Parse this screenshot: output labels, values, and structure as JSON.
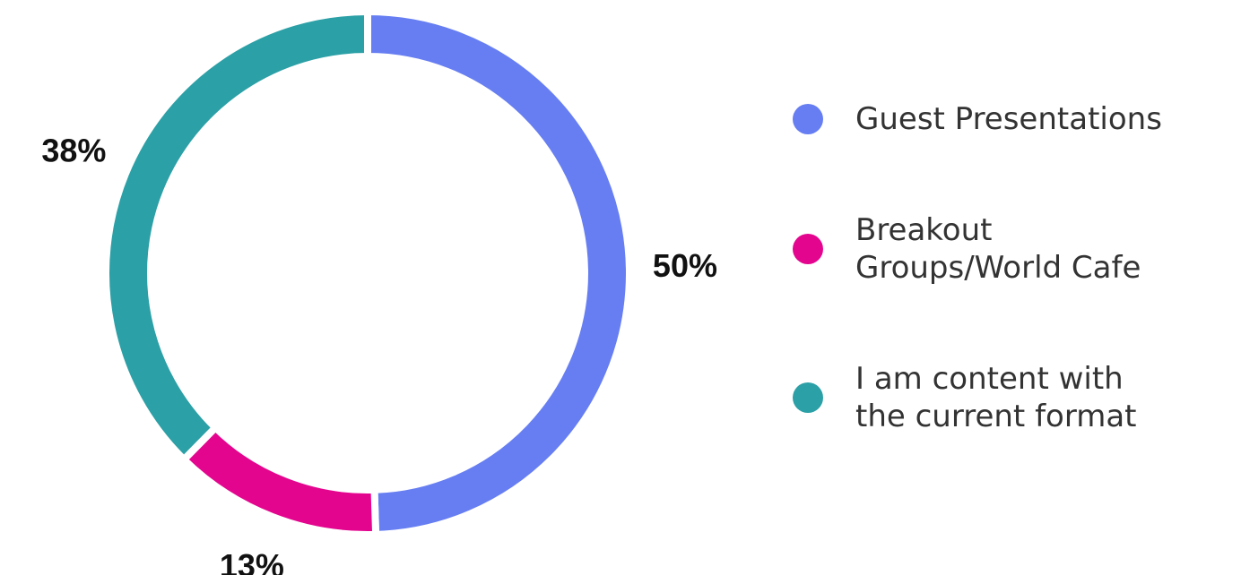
{
  "chart_data": {
    "type": "pie",
    "variant": "donut",
    "title": "",
    "categories": [
      "Guest Presentations",
      "Breakout Groups/World Cafe",
      "I am content with the current format"
    ],
    "values": [
      50,
      13,
      38
    ],
    "labels": [
      "50%",
      "13%",
      "38%"
    ],
    "unit": "%",
    "colors": [
      "#667EF2",
      "#E4058F",
      "#2BA0A6"
    ],
    "legend_position": "right",
    "legend": [
      {
        "label_lines": [
          "Guest Presentations"
        ],
        "color": "#667EF2"
      },
      {
        "label_lines": [
          "Breakout",
          "Groups/World Cafe"
        ],
        "color": "#E4058F"
      },
      {
        "label_lines": [
          "I am content with",
          "the current format"
        ],
        "color": "#2BA0A6"
      }
    ]
  }
}
